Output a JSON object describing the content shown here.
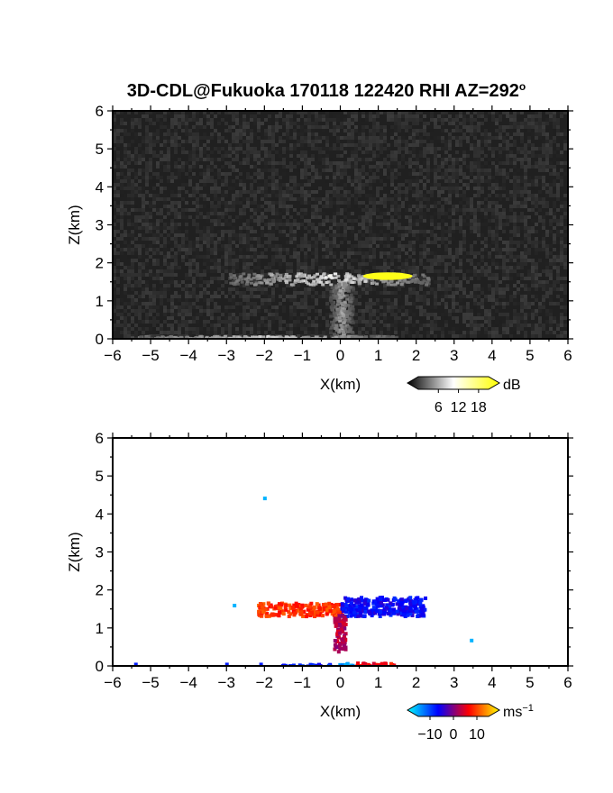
{
  "figure": {
    "title": "3D-CDL@Fukuoka 170118 122420 RHI AZ=292",
    "title_suffix": "o"
  },
  "chart_data": [
    {
      "type": "heatmap",
      "name": "reflectivity",
      "xlabel": "X(km)",
      "ylabel": "Z(km)",
      "xlim": [
        -6,
        6
      ],
      "ylim": [
        0,
        6
      ],
      "xticks": [
        -6,
        -5,
        -4,
        -3,
        -2,
        -1,
        0,
        1,
        2,
        3,
        4,
        5,
        6
      ],
      "yticks": [
        0,
        1,
        2,
        3,
        4,
        5,
        6
      ],
      "background": "noise gray",
      "colorbar": {
        "unit": "dB",
        "ticks": [
          "6",
          "12",
          "18"
        ],
        "range": [
          0,
          21
        ],
        "colors": [
          "#000000",
          "#ffffff",
          "#ffff00"
        ]
      },
      "features": [
        {
          "label": "cloud layer",
          "x_range": [
            -3.0,
            2.3
          ],
          "z_center": 1.6,
          "z_half": 0.15,
          "value": 10
        },
        {
          "label": "cloud core",
          "x_range": [
            0.6,
            1.9
          ],
          "z_center": 1.65,
          "z_half": 0.1,
          "value": 20
        },
        {
          "label": "column below cloud",
          "x_range": [
            -0.3,
            0.3
          ],
          "z_range": [
            0.0,
            1.5
          ],
          "value": 7
        },
        {
          "label": "surface echo",
          "x_range": [
            -5.6,
            1.5
          ],
          "z_center": 0.05,
          "value": 9
        }
      ]
    },
    {
      "type": "heatmap",
      "name": "doppler velocity",
      "xlabel": "X(km)",
      "ylabel": "Z(km)",
      "xlim": [
        -6,
        6
      ],
      "ylim": [
        0,
        6
      ],
      "xticks": [
        -6,
        -5,
        -4,
        -3,
        -2,
        -1,
        0,
        1,
        2,
        3,
        4,
        5,
        6
      ],
      "yticks": [
        0,
        1,
        2,
        3,
        4,
        5,
        6
      ],
      "background": "white",
      "colorbar": {
        "unit": "ms",
        "unit_exp": "-1",
        "ticks": [
          "-10",
          "0",
          "10"
        ],
        "range": [
          -15,
          15
        ],
        "colors": [
          "#00ffff",
          "#0000ff",
          "#ff0000",
          "#ffff00"
        ]
      },
      "features": [
        {
          "label": "receding layer",
          "x_range": [
            -2.2,
            0.0
          ],
          "z_range": [
            1.35,
            1.7
          ],
          "value": 7
        },
        {
          "label": "approaching layer",
          "x_range": [
            0.0,
            2.2
          ],
          "z_range": [
            1.35,
            1.85
          ],
          "value": -5
        },
        {
          "label": "falling streak",
          "x_range": [
            -0.2,
            0.1
          ],
          "z_range": [
            0.4,
            1.4
          ],
          "value": 2
        },
        {
          "label": "surface red",
          "x_range": [
            0.4,
            1.4
          ],
          "z_range": [
            0.0,
            0.12
          ],
          "value": 5
        },
        {
          "label": "surface cyan",
          "x_range": [
            -0.1,
            0.3
          ],
          "z_range": [
            0.0,
            0.12
          ],
          "value": -12
        },
        {
          "label": "surface blue",
          "x_range": [
            -1.6,
            0.0
          ],
          "z_range": [
            0.0,
            0.08
          ],
          "value": -6
        }
      ],
      "isolated_points": [
        {
          "x": -2.0,
          "z": 4.42,
          "value": -12
        },
        {
          "x": 3.45,
          "z": 0.68,
          "value": -12
        },
        {
          "x": -2.8,
          "z": 1.6,
          "value": -12
        },
        {
          "x": -5.4,
          "z": 0.05,
          "value": -6
        },
        {
          "x": -3.0,
          "z": 0.05,
          "value": -6
        },
        {
          "x": -2.1,
          "z": 0.05,
          "value": -6
        }
      ]
    }
  ]
}
